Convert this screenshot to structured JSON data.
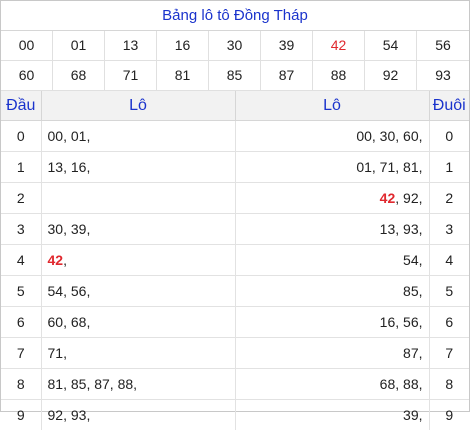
{
  "title": "Bảng lô tô Đồng Tháp",
  "numbers": [
    {
      "value": "00",
      "highlight": false
    },
    {
      "value": "01",
      "highlight": false
    },
    {
      "value": "13",
      "highlight": false
    },
    {
      "value": "16",
      "highlight": false
    },
    {
      "value": "30",
      "highlight": false
    },
    {
      "value": "39",
      "highlight": false
    },
    {
      "value": "42",
      "highlight": true
    },
    {
      "value": "54",
      "highlight": false
    },
    {
      "value": "56",
      "highlight": false
    },
    {
      "value": "60",
      "highlight": false
    },
    {
      "value": "68",
      "highlight": false
    },
    {
      "value": "71",
      "highlight": false
    },
    {
      "value": "81",
      "highlight": false
    },
    {
      "value": "85",
      "highlight": false
    },
    {
      "value": "87",
      "highlight": false
    },
    {
      "value": "88",
      "highlight": false
    },
    {
      "value": "92",
      "highlight": false
    },
    {
      "value": "93",
      "highlight": false
    }
  ],
  "headers": {
    "dau": "Đầu",
    "lo_left": "Lô",
    "lo_right": "Lô",
    "duoi": "Đuôi"
  },
  "rows": [
    {
      "dau": "0",
      "left": [
        [
          "00",
          false
        ],
        [
          "01",
          false
        ]
      ],
      "right": [
        [
          "00",
          false
        ],
        [
          "30",
          false
        ],
        [
          "60",
          false
        ]
      ],
      "duoi": "0"
    },
    {
      "dau": "1",
      "left": [
        [
          "13",
          false
        ],
        [
          "16",
          false
        ]
      ],
      "right": [
        [
          "01",
          false
        ],
        [
          "71",
          false
        ],
        [
          "81",
          false
        ]
      ],
      "duoi": "1"
    },
    {
      "dau": "2",
      "left": [],
      "right": [
        [
          "42",
          true
        ],
        [
          "92",
          false
        ]
      ],
      "duoi": "2"
    },
    {
      "dau": "3",
      "left": [
        [
          "30",
          false
        ],
        [
          "39",
          false
        ]
      ],
      "right": [
        [
          "13",
          false
        ],
        [
          "93",
          false
        ]
      ],
      "duoi": "3"
    },
    {
      "dau": "4",
      "left": [
        [
          "42",
          true
        ]
      ],
      "right": [
        [
          "54",
          false
        ]
      ],
      "duoi": "4"
    },
    {
      "dau": "5",
      "left": [
        [
          "54",
          false
        ],
        [
          "56",
          false
        ]
      ],
      "right": [
        [
          "85",
          false
        ]
      ],
      "duoi": "5"
    },
    {
      "dau": "6",
      "left": [
        [
          "60",
          false
        ],
        [
          "68",
          false
        ]
      ],
      "right": [
        [
          "16",
          false
        ],
        [
          "56",
          false
        ]
      ],
      "duoi": "6"
    },
    {
      "dau": "7",
      "left": [
        [
          "71",
          false
        ]
      ],
      "right": [
        [
          "87",
          false
        ]
      ],
      "duoi": "7"
    },
    {
      "dau": "8",
      "left": [
        [
          "81",
          false
        ],
        [
          "85",
          false
        ],
        [
          "87",
          false
        ],
        [
          "88",
          false
        ]
      ],
      "right": [
        [
          "68",
          false
        ],
        [
          "88",
          false
        ]
      ],
      "duoi": "8"
    },
    {
      "dau": "9",
      "left": [
        [
          "92",
          false
        ],
        [
          "93",
          false
        ]
      ],
      "right": [
        [
          "39",
          false
        ]
      ],
      "duoi": "9"
    }
  ],
  "colors": {
    "title_blue": "#1a33cc",
    "highlight_red": "#e0282e"
  }
}
